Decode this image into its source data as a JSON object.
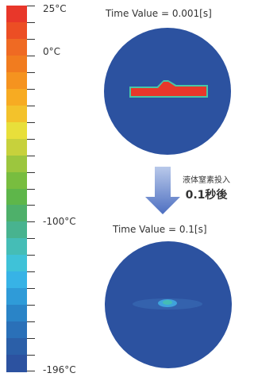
{
  "colorbar": {
    "colors": [
      "#e8372a",
      "#ec4e24",
      "#ef6a23",
      "#f17c1f",
      "#f5931f",
      "#f7ab22",
      "#f3c22b",
      "#e8df3a",
      "#c7d13c",
      "#9cc63e",
      "#78bd3f",
      "#5eb64a",
      "#4eb06a",
      "#48b38f",
      "#45bdb6",
      "#3fc2d8",
      "#37b3e6",
      "#2f9bd8",
      "#2a84c7",
      "#2a70b8",
      "#2b5fa8",
      "#2c52a0"
    ],
    "labels": [
      {
        "text": "25°C",
        "pos": 0.0
      },
      {
        "text": "0°C",
        "pos": 0.12
      },
      {
        "text": "-100°C",
        "pos": 0.585
      },
      {
        "text": "-196°C",
        "pos": 1.0
      }
    ]
  },
  "top_panel": {
    "time_label": "Time Value = 0.001[s]"
  },
  "bottom_panel": {
    "time_label": "Time Value = 0.1[s]"
  },
  "transition": {
    "line1": "液体窒素投入",
    "line2": "0.1秒後"
  }
}
